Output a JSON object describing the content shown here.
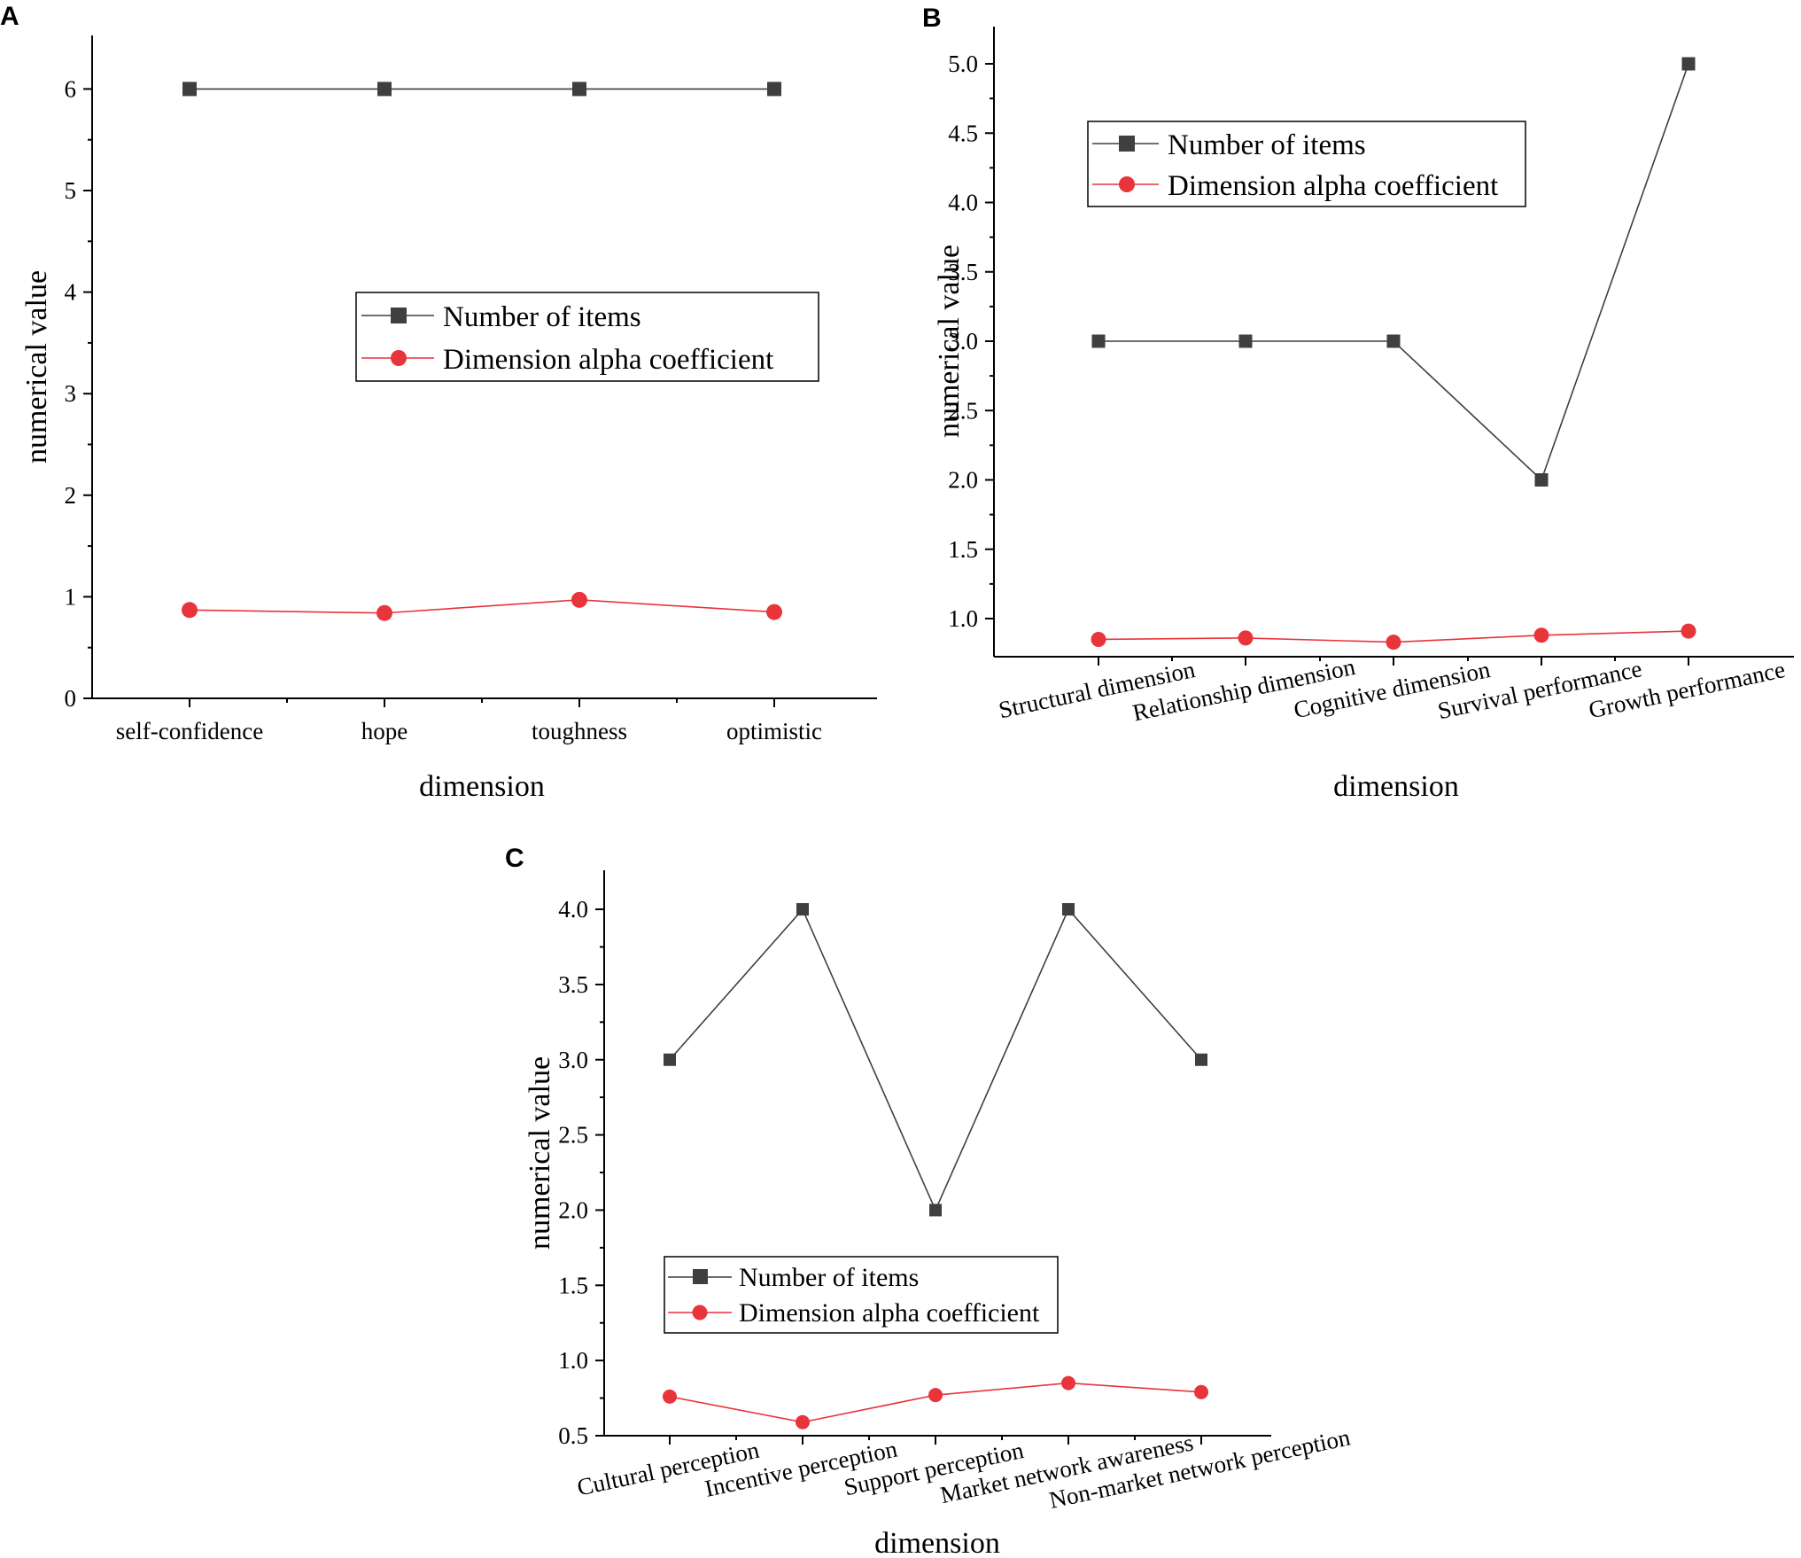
{
  "chart_data": [
    {
      "panel": "A",
      "type": "line",
      "categories": [
        "self-confidence",
        "hope",
        "toughness",
        "optimistic"
      ],
      "xlabel": "dimension",
      "ylabel": "numerical value",
      "ylim": [
        0,
        6.5
      ],
      "yticks": [
        0,
        1,
        2,
        3,
        4,
        5,
        6
      ],
      "ytick_labels": [
        "0",
        "1",
        "2",
        "3",
        "4",
        "5",
        "6"
      ],
      "series": [
        {
          "name": "Number of items",
          "values": [
            6,
            6,
            6,
            6
          ],
          "color": "#3f3f3f",
          "marker": "square"
        },
        {
          "name": "Dimension alpha coefficient",
          "values": [
            0.87,
            0.84,
            0.97,
            0.85
          ],
          "color": "#e8343b",
          "marker": "circle"
        }
      ]
    },
    {
      "panel": "B",
      "type": "line",
      "categories": [
        "Structural dimension",
        "Relationship dimension",
        "Cognitive dimension",
        "Survival performance",
        "Growth performance"
      ],
      "xlabel": "dimension",
      "ylabel": "numerical value",
      "ylim": [
        0.75,
        5.2
      ],
      "yticks": [
        1.0,
        1.5,
        2.0,
        2.5,
        3.0,
        3.5,
        4.0,
        4.5,
        5.0
      ],
      "ytick_labels": [
        "1.0",
        "1.5",
        "2.0",
        "2.5",
        "3.0",
        "3.5",
        "4.0",
        "4.5",
        "5.0"
      ],
      "series": [
        {
          "name": "Number of items",
          "values": [
            3,
            3,
            3,
            2,
            5
          ],
          "color": "#3f3f3f",
          "marker": "square"
        },
        {
          "name": "Dimension alpha coefficient",
          "values": [
            0.85,
            0.86,
            0.83,
            0.88,
            0.91
          ],
          "color": "#e8343b",
          "marker": "circle"
        }
      ]
    },
    {
      "panel": "C",
      "type": "line",
      "categories": [
        "Cultural perception",
        "Incentive perception",
        "Support perception",
        "Market network awareness",
        "Non-market network perception"
      ],
      "xlabel": "dimension",
      "ylabel": "numerical value",
      "ylim": [
        0.5,
        4.25
      ],
      "yticks": [
        0.5,
        1.0,
        1.5,
        2.0,
        2.5,
        3.0,
        3.5,
        4.0
      ],
      "ytick_labels": [
        "0.5",
        "1.0",
        "1.5",
        "2.0",
        "2.5",
        "3.0",
        "3.5",
        "4.0"
      ],
      "series": [
        {
          "name": "Number of items",
          "values": [
            3,
            4,
            2,
            4,
            3
          ],
          "color": "#3f3f3f",
          "marker": "square"
        },
        {
          "name": "Dimension alpha coefficient",
          "values": [
            0.76,
            0.59,
            0.77,
            0.85,
            0.79
          ],
          "color": "#e8343b",
          "marker": "circle"
        }
      ]
    }
  ]
}
